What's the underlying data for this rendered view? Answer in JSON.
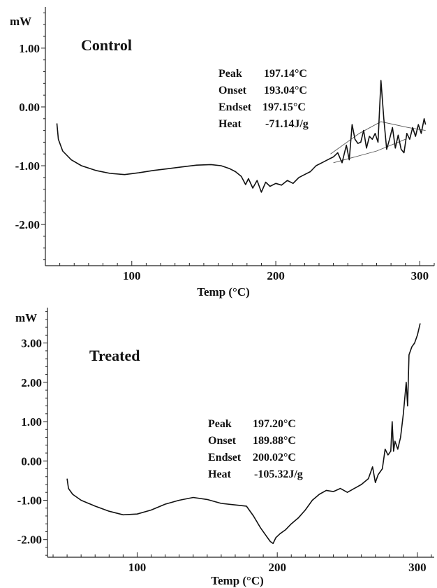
{
  "chart_data": [
    {
      "type": "line",
      "title": "Control",
      "unit_label": "mW",
      "xlabel": "Temp (°C)",
      "xlim": [
        40,
        310
      ],
      "ylim": [
        -2.7,
        1.7
      ],
      "x_ticks": [
        100,
        200,
        300
      ],
      "y_ticks": [
        1.0,
        0.0,
        -1.0,
        -2.0
      ],
      "y_tick_labels": [
        "1.00",
        "0.00",
        "-1.00",
        "-2.00"
      ],
      "annotation": [
        {
          "label": "Peak",
          "value": "197.14°C"
        },
        {
          "label": "Onset",
          "value": "193.04°C"
        },
        {
          "label": "Endset",
          "value": "197.15°C"
        },
        {
          "label": "Heat",
          "value": "-71.14J/g"
        }
      ],
      "series": [
        {
          "x": [
            48,
            49,
            52,
            58,
            65,
            75,
            85,
            95,
            105,
            115,
            125,
            135,
            145,
            155,
            162,
            168,
            172,
            176,
            179,
            181,
            184,
            187,
            190,
            193,
            196,
            200,
            204,
            208,
            212,
            216,
            220,
            224,
            228,
            232,
            236,
            240,
            243,
            246,
            249,
            251,
            253,
            255,
            257,
            259,
            261,
            263,
            265,
            267,
            269,
            271,
            273,
            275,
            277,
            279,
            281,
            283,
            285,
            287,
            289,
            291,
            293,
            295,
            297,
            299,
            301,
            303,
            304
          ],
          "y": [
            -0.28,
            -0.55,
            -0.75,
            -0.9,
            -1.0,
            -1.08,
            -1.13,
            -1.15,
            -1.12,
            -1.08,
            -1.05,
            -1.02,
            -0.99,
            -0.98,
            -1.0,
            -1.05,
            -1.1,
            -1.18,
            -1.32,
            -1.22,
            -1.38,
            -1.25,
            -1.45,
            -1.28,
            -1.35,
            -1.3,
            -1.33,
            -1.25,
            -1.3,
            -1.2,
            -1.15,
            -1.1,
            -1.0,
            -0.95,
            -0.9,
            -0.85,
            -0.78,
            -0.95,
            -0.65,
            -0.9,
            -0.3,
            -0.55,
            -0.62,
            -0.6,
            -0.4,
            -0.7,
            -0.5,
            -0.55,
            -0.45,
            -0.6,
            0.45,
            -0.2,
            -0.72,
            -0.55,
            -0.35,
            -0.7,
            -0.48,
            -0.72,
            -0.78,
            -0.45,
            -0.55,
            -0.35,
            -0.5,
            -0.3,
            -0.45,
            -0.2,
            -0.3
          ]
        }
      ],
      "baseline": {
        "x": [
          238,
          258,
          273,
          292,
          304
        ],
        "y": [
          -0.8,
          -0.45,
          -0.25,
          -0.35,
          -0.4
        ]
      },
      "baseline2": {
        "x": [
          240,
          270,
          290
        ],
        "y": [
          -0.95,
          -0.75,
          -0.55
        ]
      }
    },
    {
      "type": "line",
      "title": "Treated",
      "unit_label": "mW",
      "xlabel": "Temp (°C)",
      "xlim": [
        36,
        312
      ],
      "ylim": [
        -2.45,
        3.9
      ],
      "x_ticks": [
        100,
        200,
        300
      ],
      "y_ticks": [
        3.0,
        2.0,
        1.0,
        0.0,
        -1.0,
        -2.0
      ],
      "y_tick_labels": [
        "3.00",
        "2.00",
        "1.00",
        "0.00",
        "-1.00",
        "-2.00"
      ],
      "annotation": [
        {
          "label": "Peak",
          "value": "197.20°C"
        },
        {
          "label": "Onset",
          "value": "189.88°C"
        },
        {
          "label": "Endset",
          "value": "200.02°C"
        },
        {
          "label": "Heat",
          "value": "-105.32J/g"
        }
      ],
      "series": [
        {
          "x": [
            50,
            51,
            54,
            60,
            70,
            80,
            90,
            100,
            110,
            120,
            130,
            140,
            150,
            160,
            170,
            178,
            183,
            188,
            192,
            195,
            197,
            199,
            202,
            206,
            210,
            215,
            220,
            225,
            230,
            235,
            240,
            245,
            250,
            255,
            260,
            265,
            268,
            270,
            272,
            275,
            277,
            279,
            281,
            282,
            283,
            284,
            286,
            288,
            290,
            292,
            293,
            294,
            296,
            298,
            300,
            302
          ],
          "y": [
            -0.45,
            -0.7,
            -0.85,
            -1.0,
            -1.15,
            -1.28,
            -1.37,
            -1.35,
            -1.25,
            -1.1,
            -1.0,
            -0.93,
            -0.98,
            -1.08,
            -1.12,
            -1.15,
            -1.4,
            -1.7,
            -1.9,
            -2.05,
            -2.1,
            -1.95,
            -1.85,
            -1.75,
            -1.6,
            -1.45,
            -1.25,
            -1.0,
            -0.85,
            -0.75,
            -0.78,
            -0.7,
            -0.8,
            -0.7,
            -0.6,
            -0.45,
            -0.15,
            -0.55,
            -0.35,
            -0.2,
            0.3,
            0.15,
            0.25,
            1.0,
            0.25,
            0.5,
            0.3,
            0.6,
            1.2,
            2.0,
            1.4,
            2.7,
            2.9,
            3.0,
            3.2,
            3.5
          ]
        }
      ]
    }
  ]
}
